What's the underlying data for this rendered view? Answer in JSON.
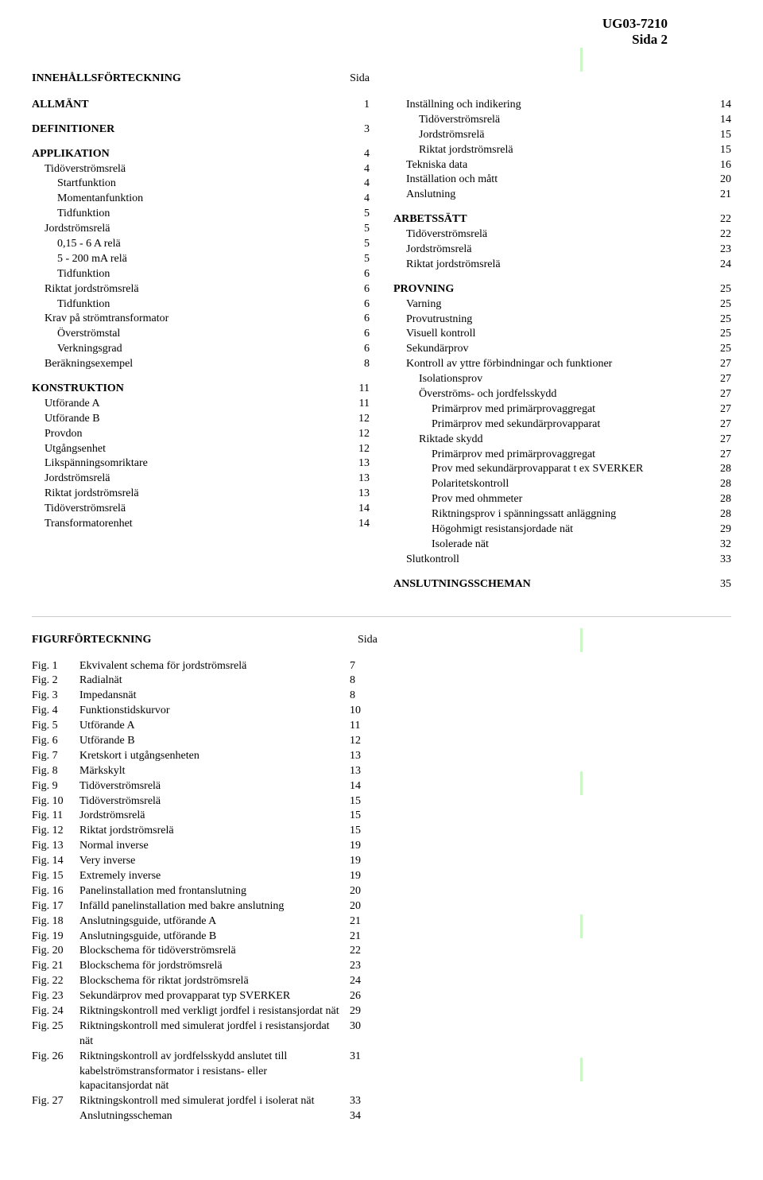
{
  "doc_number": "UG03-7210",
  "page_label": "Sida 2",
  "toc_heading": "INNEHÅLLSFÖRTECKNING",
  "page_col_label": "Sida",
  "left_toc": [
    {
      "label": "ALLMÄNT",
      "page": "1",
      "bold": true,
      "indent": 0,
      "gap_after": true
    },
    {
      "label": "DEFINITIONER",
      "page": "3",
      "bold": true,
      "indent": 0,
      "gap_after": true
    },
    {
      "label": "APPLIKATION",
      "page": "4",
      "bold": true,
      "indent": 0
    },
    {
      "label": "Tidöverströmsrelä",
      "page": "4",
      "indent": 1
    },
    {
      "label": "Startfunktion",
      "page": "4",
      "indent": 2
    },
    {
      "label": "Momentanfunktion",
      "page": "4",
      "indent": 2
    },
    {
      "label": "Tidfunktion",
      "page": "5",
      "indent": 2
    },
    {
      "label": "Jordströmsrelä",
      "page": "5",
      "indent": 1
    },
    {
      "label": "0,15 - 6 A relä",
      "page": "5",
      "indent": 2
    },
    {
      "label": "5 - 200 mA relä",
      "page": "5",
      "indent": 2
    },
    {
      "label": "Tidfunktion",
      "page": "6",
      "indent": 2
    },
    {
      "label": "Riktat jordströmsrelä",
      "page": "6",
      "indent": 1
    },
    {
      "label": "Tidfunktion",
      "page": "6",
      "indent": 2
    },
    {
      "label": "Krav på strömtransformator",
      "page": "6",
      "indent": 1
    },
    {
      "label": "Överströmstal",
      "page": "6",
      "indent": 2
    },
    {
      "label": "Verkningsgrad",
      "page": "6",
      "indent": 2
    },
    {
      "label": "Beräkningsexempel",
      "page": "8",
      "indent": 1,
      "gap_after": true
    },
    {
      "label": "KONSTRUKTION",
      "page": "11",
      "bold": true,
      "indent": 0
    },
    {
      "label": "Utförande A",
      "page": "11",
      "indent": 1
    },
    {
      "label": "Utförande B",
      "page": "12",
      "indent": 1
    },
    {
      "label": "Provdon",
      "page": "12",
      "indent": 1
    },
    {
      "label": "Utgångsenhet",
      "page": "12",
      "indent": 1
    },
    {
      "label": "Likspänningsomriktare",
      "page": "13",
      "indent": 1
    },
    {
      "label": "Jordströmsrelä",
      "page": "13",
      "indent": 1
    },
    {
      "label": "Riktat jordströmsrelä",
      "page": "13",
      "indent": 1
    },
    {
      "label": "Tidöverströmsrelä",
      "page": "14",
      "indent": 1
    },
    {
      "label": "Transformatorenhet",
      "page": "14",
      "indent": 1
    }
  ],
  "right_toc": [
    {
      "label": "Inställning och indikering",
      "page": "14",
      "indent": 1
    },
    {
      "label": "Tidöverströmsrelä",
      "page": "14",
      "indent": 2
    },
    {
      "label": "Jordströmsrelä",
      "page": "15",
      "indent": 2
    },
    {
      "label": "Riktat jordströmsrelä",
      "page": "15",
      "indent": 2
    },
    {
      "label": "Tekniska data",
      "page": "16",
      "indent": 1
    },
    {
      "label": "Inställation och mått",
      "page": "20",
      "indent": 1
    },
    {
      "label": "Anslutning",
      "page": "21",
      "indent": 1,
      "gap_after": true
    },
    {
      "label": "ARBETSSÄTT",
      "page": "22",
      "bold": true,
      "indent": 0
    },
    {
      "label": "Tidöverströmsrelä",
      "page": "22",
      "indent": 1
    },
    {
      "label": "Jordströmsrelä",
      "page": "23",
      "indent": 1
    },
    {
      "label": "Riktat jordströmsrelä",
      "page": "24",
      "indent": 1,
      "gap_after": true
    },
    {
      "label": "PROVNING",
      "page": "25",
      "bold": true,
      "indent": 0
    },
    {
      "label": "Varning",
      "page": "25",
      "indent": 1
    },
    {
      "label": "Provutrustning",
      "page": "25",
      "indent": 1
    },
    {
      "label": "Visuell kontroll",
      "page": "25",
      "indent": 1
    },
    {
      "label": "Sekundärprov",
      "page": "25",
      "indent": 1
    },
    {
      "label": "Kontroll av yttre förbindningar och funktioner",
      "page": "27",
      "indent": 1
    },
    {
      "label": "Isolationsprov",
      "page": "27",
      "indent": 2
    },
    {
      "label": "Överströms- och jordfelsskydd",
      "page": "27",
      "indent": 2
    },
    {
      "label": "Primärprov med primärprovaggregat",
      "page": "27",
      "indent": 3
    },
    {
      "label": "Primärprov med sekundärprovapparat",
      "page": "27",
      "indent": 3
    },
    {
      "label": "Riktade skydd",
      "page": "27",
      "indent": 2
    },
    {
      "label": "Primärprov med primärprovaggregat",
      "page": "27",
      "indent": 3
    },
    {
      "label": "Prov med sekundärprovapparat t ex SVERKER",
      "page": "28",
      "indent": 3
    },
    {
      "label": "Polaritetskontroll",
      "page": "28",
      "indent": 3
    },
    {
      "label": "Prov med ohmmeter",
      "page": "28",
      "indent": 3
    },
    {
      "label": "Riktningsprov i spänningssatt anläggning",
      "page": "28",
      "indent": 3
    },
    {
      "label": "Högohmigt resistansjordade nät",
      "page": "29",
      "indent": 3
    },
    {
      "label": "Isolerade nät",
      "page": "32",
      "indent": 3
    },
    {
      "label": "Slutkontroll",
      "page": "33",
      "indent": 1,
      "gap_after": true
    },
    {
      "label": "ANSLUTNINGSSCHEMAN",
      "page": "35",
      "bold": true,
      "indent": 0
    }
  ],
  "fig_heading": "FIGURFÖRTECKNING",
  "figures": [
    {
      "num": "Fig. 1",
      "title": "Ekvivalent schema för jordströmsrelä",
      "page": "7"
    },
    {
      "num": "Fig. 2",
      "title": "Radialnät",
      "page": "8"
    },
    {
      "num": "Fig. 3",
      "title": "Impedansnät",
      "page": "8"
    },
    {
      "num": "Fig. 4",
      "title": "Funktionstidskurvor",
      "page": "10"
    },
    {
      "num": "Fig. 5",
      "title": "Utförande A",
      "page": "11"
    },
    {
      "num": "Fig. 6",
      "title": "Utförande B",
      "page": "12"
    },
    {
      "num": "Fig. 7",
      "title": "Kretskort i utgångsenheten",
      "page": "13"
    },
    {
      "num": "Fig. 8",
      "title": "Märkskylt",
      "page": "13"
    },
    {
      "num": "Fig. 9",
      "title": "Tidöverströmsrelä",
      "page": "14"
    },
    {
      "num": "Fig. 10",
      "title": "Tidöverströmsrelä",
      "page": "15"
    },
    {
      "num": "Fig. 11",
      "title": "Jordströmsrelä",
      "page": "15"
    },
    {
      "num": "Fig. 12",
      "title": "Riktat jordströmsrelä",
      "page": "15"
    },
    {
      "num": "Fig. 13",
      "title": "Normal inverse",
      "page": "19"
    },
    {
      "num": "Fig. 14",
      "title": "Very inverse",
      "page": "19"
    },
    {
      "num": "Fig. 15",
      "title": "Extremely inverse",
      "page": "19"
    },
    {
      "num": "Fig. 16",
      "title": "Panelinstallation med frontanslutning",
      "page": "20"
    },
    {
      "num": "Fig. 17",
      "title": "Infälld panelinstallation med bakre anslutning",
      "page": "20"
    },
    {
      "num": "Fig. 18",
      "title": "Anslutningsguide, utförande A",
      "page": "21"
    },
    {
      "num": "Fig. 19",
      "title": "Anslutningsguide, utförande B",
      "page": "21"
    },
    {
      "num": "Fig. 20",
      "title": "Blockschema för tidöverströmsrelä",
      "page": "22"
    },
    {
      "num": "Fig. 21",
      "title": "Blockschema för jordströmsrelä",
      "page": "23"
    },
    {
      "num": "Fig. 22",
      "title": "Blockschema för riktat jordströmsrelä",
      "page": "24"
    },
    {
      "num": "Fig. 23",
      "title": "Sekundärprov med provapparat typ SVERKER",
      "page": "26"
    },
    {
      "num": "Fig. 24",
      "title": "Riktningskontroll med verkligt jordfel i resistansjordat nät",
      "page": "29"
    },
    {
      "num": "Fig. 25",
      "title": "Riktningskontroll med simulerat jordfel i resistansjordat nät",
      "page": "30"
    },
    {
      "num": "Fig. 26",
      "title": "Riktningskontroll av jordfelsskydd anslutet till kabelströmstransformator i resistans- eller kapacitansjordat nät",
      "page": "31"
    },
    {
      "num": "Fig. 27",
      "title": "Riktningskontroll med simulerat jordfel i isolerat nät",
      "page": "33"
    },
    {
      "num": "",
      "title": "Anslutningsscheman",
      "page": "34"
    }
  ]
}
